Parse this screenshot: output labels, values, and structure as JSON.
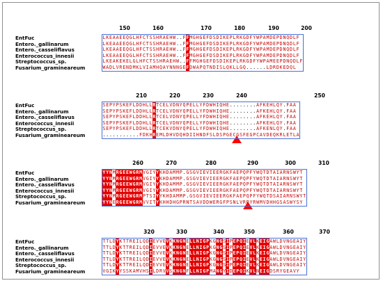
{
  "species": [
    "EntFuc",
    "Entero._gallinarum",
    "Entero._casseliflavus",
    "Enterococcus_innesii",
    "Streptococcus_sp.",
    "Fusarium_gramineareum"
  ],
  "blocks": [
    {
      "ticks": [
        "150",
        "160",
        "170",
        "180",
        "190",
        "200"
      ],
      "sequences": [
        "LKEAAEEQGLHFCTSSHRAEHW..FFMGHGEFDSDIKEPLRKGDFYWPAMDEPDNQDLF",
        "LKEAAEEQGLHFCTSSHRAEHW..FFMGHGEFDSDIKEPLRKGDFYWPAMDEPDNQDLF",
        "LKEAAEEQGLHFCTSSHRAEHW..FFMGHGEFDSDIKEPLRKGDFYWPAMDEPDNQDLF",
        "LKEAAEEQGLHFCTSSHRAEHW..FFMGHGEFDSDIKEPLRKGDFYWPAMDEPDNQDLF",
        "LKEAKEKELGLHFCTSSHRAEHW..FFMGHGEFDSDIKEPLRKGDFYWPAMEEPDNQDLF",
        "WADLVRENDMKLVIAMHQAYNNNGEFDWAPQTNDISLQKLLGQ......LDRDKEDQL"
      ]
    },
    {
      "ticks": [
        "210",
        "220",
        "230",
        "240",
        "250"
      ],
      "sequences": [
        "SEPYPSKEFLDDHLLRTCELVDNYQPELLYFDWHIQHE........AFKEHLQY.FAA",
        "SEPYPSKEFLDDHLLRTCELVDNYQPELLYFDWHIQHE........AFKEHLQY.FAA",
        "SEPYPSKEFLDDHLLRTCELVDNYQPELLYFDWHIQHE........AFKEHLQY.FAA",
        "SEPYPSKEFLDDHLLRTCELVDNYQPELLYFDWHIQHE........AFKEHLQY.FAA",
        "SEPYPSKEFLDDHLLRTCEKVDNYQPELLYFDWHIQHE........AFKENLQY.FAA",
        "...........FDKHREMLDHVDQHDIIHNDFSLDSPGECGSFEGPCAVDEQKRLETLA"
      ]
    },
    {
      "ticks": [
        "260",
        "270",
        "280",
        "290",
        "300",
        "310"
      ],
      "sequences": [
        "YYNMRGEEWGRMVGIYYKHDAMMP.GSGVIEVIEERGKFAEPQPFYWQTDTAIARNSWYT",
        "YYNMRGEEWGRMVGIYYKHDAMMP.GSGVIEVIEERGKFAEPQPFYWQTDTAIARNSWYT",
        "YYNMRGEEWGRMVGIYYKHDAMMP.GSGVIEVIEERGKFAEPQPFYWQTDTAIARNSWYT",
        "YYNMRGEEWGRMVGIYYKHDAMMP.GSGVIEVIEERGKFAEPQPFYWQTDTAIARNSWYT",
        "YYNMRGEEWGRMPTSIYYKHDAMMP.GSGVIEVIEERGKFAEPQPFYWQTDSAIARNSWYT",
        "YYNERGEEWGRMVVITYKHHDHGPRNTSAVDDWERGFPSNLVRPYRWMVDHHGSASWYSY"
      ]
    },
    {
      "ticks": [
        "320",
        "330",
        "340",
        "350",
        "360",
        "370"
      ],
      "sequences": [
        "TTLDYKTTREILQDIEVVEVKKNGNELLNIGPKGNGSIPEPQIEVLKEIGAWLDVNGEAIY",
        "TTLDYKTTREILQDIEVVEVKKNGNELLNIGPKGNGSIPEPQIEVLKEIGAWLDVNGEAIY",
        "TTLDYKTTREILQDIEVVEVKKNGNELLNIGPKGNGSIPEPQIEVLKEIGAWLDVNGEAIY",
        "TTLDYKTTREILQDIEVVEVKKNGNELLNIGPKGNGSIPEPQIEVLKEIGAWLDVNGEAIY",
        "TTLDYKTTREILQDIEVVEVKKNGNELLNIGPKGNGSIPEPQIEVLKEIGAWLDVNGEAIY",
        "VGIKYYSSKAMVHSILDRVVSKNGNFLLNIGPMANGYIDEPQIKVLNEIGDSRYGEAVY"
      ]
    }
  ],
  "colors": {
    "identical": "#e30000",
    "similar": "#c40000",
    "box": "#4a6fd6",
    "marker": "#ff0000"
  }
}
